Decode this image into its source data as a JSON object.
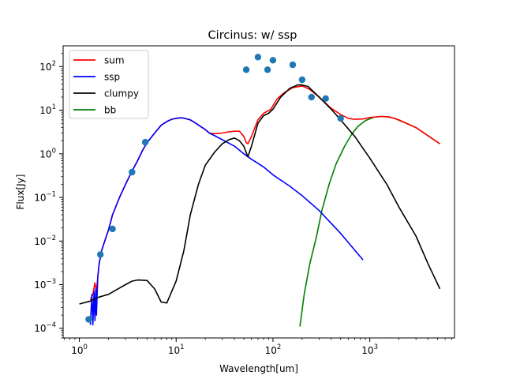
{
  "chart_data": {
    "type": "line",
    "title": "Circinus: w/ ssp",
    "xlabel": "Wavelength[um]",
    "ylabel": "Flux[Jy]",
    "xscale": "log",
    "yscale": "log",
    "xlim": [
      0.68,
      7500
    ],
    "ylim": [
      6e-05,
      300
    ],
    "x_ticks": [
      {
        "value": 1,
        "base": "10",
        "exp": "0"
      },
      {
        "value": 10,
        "base": "10",
        "exp": "1"
      },
      {
        "value": 100,
        "base": "10",
        "exp": "2"
      },
      {
        "value": 1000,
        "base": "10",
        "exp": "3"
      }
    ],
    "y_ticks": [
      {
        "value": 0.0001,
        "base": "10",
        "exp": "−4"
      },
      {
        "value": 0.001,
        "base": "10",
        "exp": "−3"
      },
      {
        "value": 0.01,
        "base": "10",
        "exp": "−2"
      },
      {
        "value": 0.1,
        "base": "10",
        "exp": "−1"
      },
      {
        "value": 1,
        "base": "10",
        "exp": "0"
      },
      {
        "value": 10,
        "base": "10",
        "exp": "1"
      },
      {
        "value": 100,
        "base": "10",
        "exp": "2"
      }
    ],
    "legend_position": "top-left",
    "series": [
      {
        "name": "sum",
        "color": "#ff0000",
        "points": [
          [
            1.3,
            0.00045
          ],
          [
            1.38,
            0.0006
          ],
          [
            1.45,
            0.0011
          ],
          [
            1.5,
            0.0007
          ],
          [
            1.55,
            0.0015
          ],
          [
            1.6,
            0.003
          ],
          [
            1.7,
            0.006
          ],
          [
            1.8,
            0.009
          ],
          [
            2.0,
            0.018
          ],
          [
            2.2,
            0.04
          ],
          [
            2.6,
            0.1
          ],
          [
            3.0,
            0.2
          ],
          [
            3.5,
            0.4
          ],
          [
            4.0,
            0.7
          ],
          [
            4.5,
            1.2
          ],
          [
            5.0,
            1.8
          ],
          [
            6.0,
            3.0
          ],
          [
            7.0,
            4.5
          ],
          [
            8.0,
            5.5
          ],
          [
            9.0,
            6.2
          ],
          [
            10,
            6.5
          ],
          [
            11,
            6.7
          ],
          [
            12,
            6.6
          ],
          [
            14,
            6.0
          ],
          [
            16,
            5.0
          ],
          [
            18,
            4.2
          ],
          [
            20,
            3.6
          ],
          [
            22,
            3.0
          ],
          [
            25,
            2.9
          ],
          [
            30,
            3.0
          ],
          [
            35,
            3.2
          ],
          [
            40,
            3.3
          ],
          [
            45,
            3.3
          ],
          [
            50,
            2.5
          ],
          [
            53,
            1.8
          ],
          [
            55,
            1.7
          ],
          [
            60,
            2.5
          ],
          [
            70,
            6.0
          ],
          [
            80,
            8.5
          ],
          [
            95,
            10.5
          ],
          [
            110,
            18.0
          ],
          [
            130,
            25.0
          ],
          [
            160,
            33.0
          ],
          [
            200,
            36.0
          ],
          [
            240,
            30.0
          ],
          [
            300,
            20.0
          ],
          [
            400,
            11.0
          ],
          [
            500,
            8.0
          ],
          [
            600,
            6.5
          ],
          [
            700,
            6.2
          ],
          [
            850,
            6.3
          ],
          [
            1000,
            6.8
          ],
          [
            1300,
            7.2
          ],
          [
            1600,
            7.0
          ],
          [
            2000,
            6.0
          ],
          [
            3000,
            4.0
          ],
          [
            4000,
            2.6
          ],
          [
            5300,
            1.7
          ]
        ]
      },
      {
        "name": "ssp",
        "color": "#0000ff",
        "points": [
          [
            1.3,
            0.00012
          ],
          [
            1.35,
            0.0006
          ],
          [
            1.38,
            0.00012
          ],
          [
            1.42,
            0.0007
          ],
          [
            1.45,
            0.00015
          ],
          [
            1.48,
            0.0008
          ],
          [
            1.5,
            0.0002
          ],
          [
            1.55,
            0.0015
          ],
          [
            1.6,
            0.003
          ],
          [
            1.7,
            0.006
          ],
          [
            1.8,
            0.009
          ],
          [
            2.0,
            0.018
          ],
          [
            2.2,
            0.04
          ],
          [
            2.6,
            0.1
          ],
          [
            3.0,
            0.2
          ],
          [
            3.5,
            0.4
          ],
          [
            4.0,
            0.7
          ],
          [
            4.5,
            1.2
          ],
          [
            5.0,
            1.8
          ],
          [
            6.0,
            3.0
          ],
          [
            7.0,
            4.5
          ],
          [
            8.0,
            5.5
          ],
          [
            9.0,
            6.2
          ],
          [
            10,
            6.5
          ],
          [
            11,
            6.7
          ],
          [
            12,
            6.6
          ],
          [
            14,
            6.0
          ],
          [
            16,
            5.0
          ],
          [
            18,
            4.2
          ],
          [
            20,
            3.6
          ],
          [
            22,
            3.0
          ],
          [
            25,
            2.6
          ],
          [
            30,
            2.1
          ],
          [
            40,
            1.5
          ],
          [
            50,
            1.0
          ],
          [
            60,
            0.75
          ],
          [
            80,
            0.5
          ],
          [
            100,
            0.33
          ],
          [
            150,
            0.18
          ],
          [
            200,
            0.11
          ],
          [
            300,
            0.05
          ],
          [
            500,
            0.015
          ],
          [
            850,
            0.0037
          ]
        ]
      },
      {
        "name": "clumpy",
        "color": "#000000",
        "points": [
          [
            1.0,
            0.00036
          ],
          [
            1.3,
            0.00042
          ],
          [
            1.6,
            0.00052
          ],
          [
            2.0,
            0.0006
          ],
          [
            2.5,
            0.0008
          ],
          [
            3.0,
            0.001
          ],
          [
            3.5,
            0.0012
          ],
          [
            4.0,
            0.00128
          ],
          [
            5.0,
            0.00125
          ],
          [
            6.0,
            0.0008
          ],
          [
            7.0,
            0.0004
          ],
          [
            8.0,
            0.00038
          ],
          [
            10,
            0.0012
          ],
          [
            12,
            0.006
          ],
          [
            14,
            0.04
          ],
          [
            17,
            0.2
          ],
          [
            20,
            0.55
          ],
          [
            25,
            1.1
          ],
          [
            30,
            1.7
          ],
          [
            35,
            2.1
          ],
          [
            40,
            2.3
          ],
          [
            45,
            2.0
          ],
          [
            50,
            1.5
          ],
          [
            55,
            0.85
          ],
          [
            60,
            1.5
          ],
          [
            70,
            5.0
          ],
          [
            80,
            7.5
          ],
          [
            90,
            8.5
          ],
          [
            100,
            10.5
          ],
          [
            120,
            20.0
          ],
          [
            150,
            32.0
          ],
          [
            180,
            38.0
          ],
          [
            200,
            38.0
          ],
          [
            230,
            35.0
          ],
          [
            300,
            20.0
          ],
          [
            400,
            10.5
          ],
          [
            500,
            6.0
          ],
          [
            700,
            2.5
          ],
          [
            1000,
            0.8
          ],
          [
            1500,
            0.2
          ],
          [
            2000,
            0.06
          ],
          [
            3000,
            0.013
          ],
          [
            4000,
            0.003
          ],
          [
            5300,
            0.0008
          ]
        ]
      },
      {
        "name": "bb",
        "color": "#008000",
        "points": [
          [
            190,
            0.00011
          ],
          [
            210,
            0.0006
          ],
          [
            240,
            0.003
          ],
          [
            280,
            0.012
          ],
          [
            320,
            0.05
          ],
          [
            380,
            0.2
          ],
          [
            450,
            0.6
          ],
          [
            550,
            1.5
          ],
          [
            650,
            2.8
          ],
          [
            750,
            4.2
          ],
          [
            900,
            5.8
          ],
          [
            1100,
            6.9
          ],
          [
            1300,
            7.2
          ],
          [
            1500,
            7.1
          ],
          [
            1800,
            6.5
          ],
          [
            2200,
            5.4
          ],
          [
            3000,
            4.0
          ],
          [
            4000,
            2.6
          ],
          [
            5300,
            1.7
          ]
        ]
      }
    ],
    "observations": {
      "color": "#1f77b4",
      "points": [
        [
          1.25,
          0.00016
        ],
        [
          1.65,
          0.0049
        ],
        [
          2.2,
          0.019
        ],
        [
          3.5,
          0.38
        ],
        [
          4.8,
          1.85
        ],
        [
          53,
          85
        ],
        [
          70,
          165
        ],
        [
          88,
          85
        ],
        [
          100,
          140
        ],
        [
          160,
          110
        ],
        [
          200,
          50
        ],
        [
          250,
          20
        ],
        [
          350,
          18.5
        ],
        [
          500,
          6.5
        ]
      ]
    }
  }
}
